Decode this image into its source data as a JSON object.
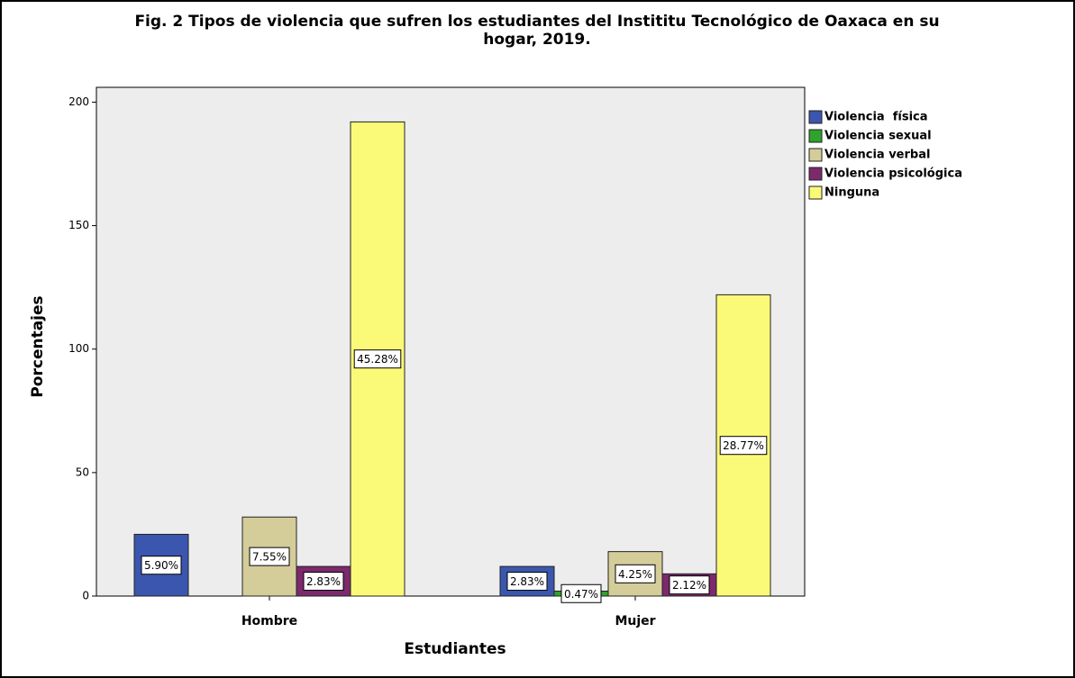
{
  "chart_data": {
    "type": "bar",
    "title": "Fig. 2 Tipos de violencia que sufren los estudiantes del Instititu Tecnológico de Oaxaca en su",
    "subtitle": "hogar, 2019.",
    "x_label": "Estudiantes",
    "y_label": "Porcentajes",
    "categories": [
      "Hombre",
      "Mujer"
    ],
    "series": [
      {
        "name": "Violencia  física",
        "color": "#3b56ae",
        "values": [
          25,
          12
        ],
        "value_labels": [
          "5.90%",
          "2.83%"
        ]
      },
      {
        "name": "Violencia sexual",
        "color": "#2ea32e",
        "values": [
          0,
          2
        ],
        "value_labels": [
          null,
          "0.47%"
        ]
      },
      {
        "name": "Violencia verbal",
        "color": "#d4cd9a",
        "values": [
          32,
          18
        ],
        "value_labels": [
          "7.55%",
          "4.25%"
        ]
      },
      {
        "name": "Violencia psicológica",
        "color": "#7c296d",
        "values": [
          12,
          9
        ],
        "value_labels": [
          "2.83%",
          "2.12%"
        ]
      },
      {
        "name": "Ninguna",
        "color": "#fbf978",
        "values": [
          192,
          122
        ],
        "value_labels": [
          "45.28%",
          "28.77%"
        ]
      }
    ],
    "ylim": [
      0,
      206
    ],
    "yticks": [
      0,
      50,
      100,
      150,
      200
    ],
    "legend": "right"
  }
}
